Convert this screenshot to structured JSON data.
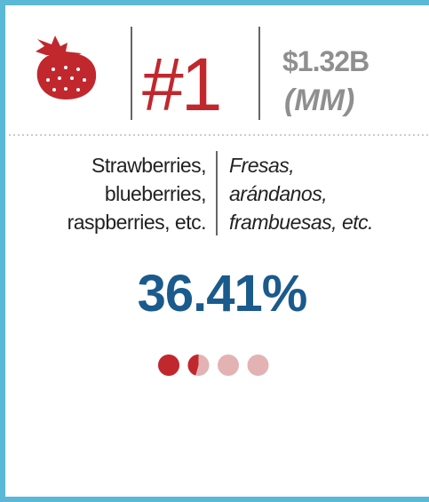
{
  "rank": "#1",
  "value": "$1.32B",
  "unit": "(MM)",
  "english": [
    "Strawberries,",
    "blueberries,",
    "raspberries, etc."
  ],
  "spanish": [
    "Fresas,",
    "arándanos,",
    "frambuesas, etc."
  ],
  "share": {
    "value": 36.41,
    "label": "36.41%"
  }
}
